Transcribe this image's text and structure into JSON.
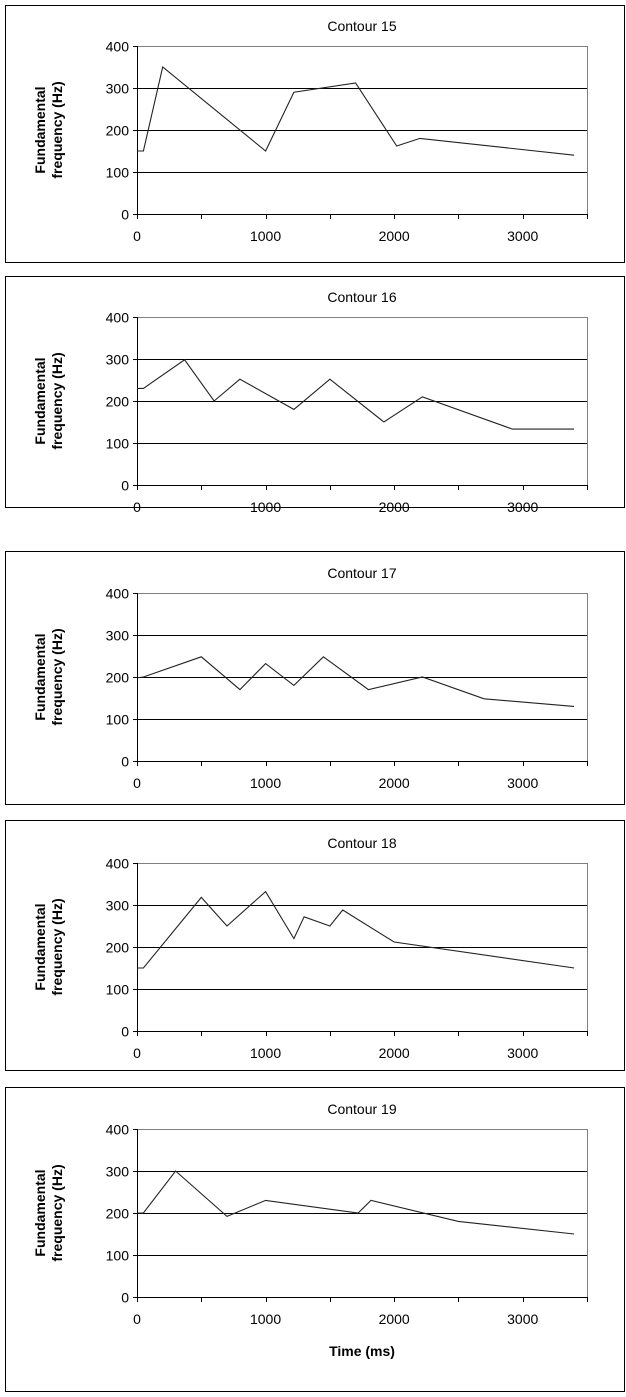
{
  "chart_data": [
    {
      "type": "line",
      "title": "Contour 15",
      "ylabel": [
        "Fundamental",
        "frequency (Hz)"
      ],
      "xlabel": "",
      "xlim": [
        0,
        3500
      ],
      "ylim": [
        0,
        400
      ],
      "x_ticks": [
        "0",
        "1000",
        "2000",
        "3000"
      ],
      "y_ticks": [
        "0",
        "100",
        "200",
        "300",
        "400"
      ],
      "grid": "horizontal",
      "series": [
        {
          "x": [
            0,
            50,
            200,
            1000,
            1220,
            1700,
            2020,
            2200,
            3400
          ],
          "y": [
            150,
            150,
            350,
            150,
            290,
            312,
            162,
            180,
            140
          ]
        }
      ]
    },
    {
      "type": "line",
      "title": "Contour 16",
      "ylabel": [
        "Fundamental",
        "frequency (Hz)"
      ],
      "xlabel": "",
      "xlim": [
        0,
        3500
      ],
      "ylim": [
        0,
        400
      ],
      "x_ticks": [
        "0",
        "1000",
        "2000",
        "3000"
      ],
      "y_ticks": [
        "0",
        "100",
        "200",
        "300",
        "400"
      ],
      "grid": "horizontal",
      "series": [
        {
          "x": [
            0,
            50,
            370,
            600,
            800,
            1220,
            1500,
            1920,
            2220,
            2920,
            3400
          ],
          "y": [
            230,
            230,
            298,
            200,
            252,
            180,
            252,
            150,
            210,
            133,
            133
          ]
        }
      ]
    },
    {
      "type": "line",
      "title": "Contour 17",
      "ylabel": [
        "Fundamental",
        "frequency (Hz)"
      ],
      "xlabel": "",
      "xlim": [
        0,
        3500
      ],
      "ylim": [
        0,
        400
      ],
      "x_ticks": [
        "0",
        "1000",
        "2000",
        "3000"
      ],
      "y_ticks": [
        "0",
        "100",
        "200",
        "300",
        "400"
      ],
      "grid": "horizontal",
      "series": [
        {
          "x": [
            0,
            50,
            500,
            800,
            1000,
            1220,
            1450,
            1800,
            2220,
            2700,
            3400
          ],
          "y": [
            198,
            200,
            248,
            170,
            232,
            180,
            248,
            170,
            200,
            148,
            130
          ]
        }
      ]
    },
    {
      "type": "line",
      "title": "Contour 18",
      "ylabel": [
        "Fundamental",
        "frequency (Hz)"
      ],
      "xlabel": "",
      "xlim": [
        0,
        3500
      ],
      "ylim": [
        0,
        400
      ],
      "x_ticks": [
        "0",
        "1000",
        "2000",
        "3000"
      ],
      "y_ticks": [
        "0",
        "100",
        "200",
        "300",
        "400"
      ],
      "grid": "horizontal",
      "series": [
        {
          "x": [
            0,
            50,
            500,
            700,
            1000,
            1220,
            1300,
            1500,
            1600,
            2000,
            3400
          ],
          "y": [
            150,
            150,
            318,
            250,
            332,
            220,
            272,
            250,
            288,
            212,
            150
          ]
        }
      ]
    },
    {
      "type": "line",
      "title": "Contour 19",
      "ylabel": [
        "Fundamental",
        "frequency (Hz)"
      ],
      "xlabel": "Time (ms)",
      "xlim": [
        0,
        3500
      ],
      "ylim": [
        0,
        400
      ],
      "x_ticks": [
        "0",
        "1000",
        "2000",
        "3000"
      ],
      "y_ticks": [
        "0",
        "100",
        "200",
        "300",
        "400"
      ],
      "grid": "horizontal",
      "series": [
        {
          "x": [
            0,
            50,
            300,
            700,
            1000,
            1720,
            1820,
            2500,
            3400
          ],
          "y": [
            200,
            200,
            300,
            192,
            230,
            200,
            230,
            180,
            150
          ]
        }
      ]
    }
  ]
}
